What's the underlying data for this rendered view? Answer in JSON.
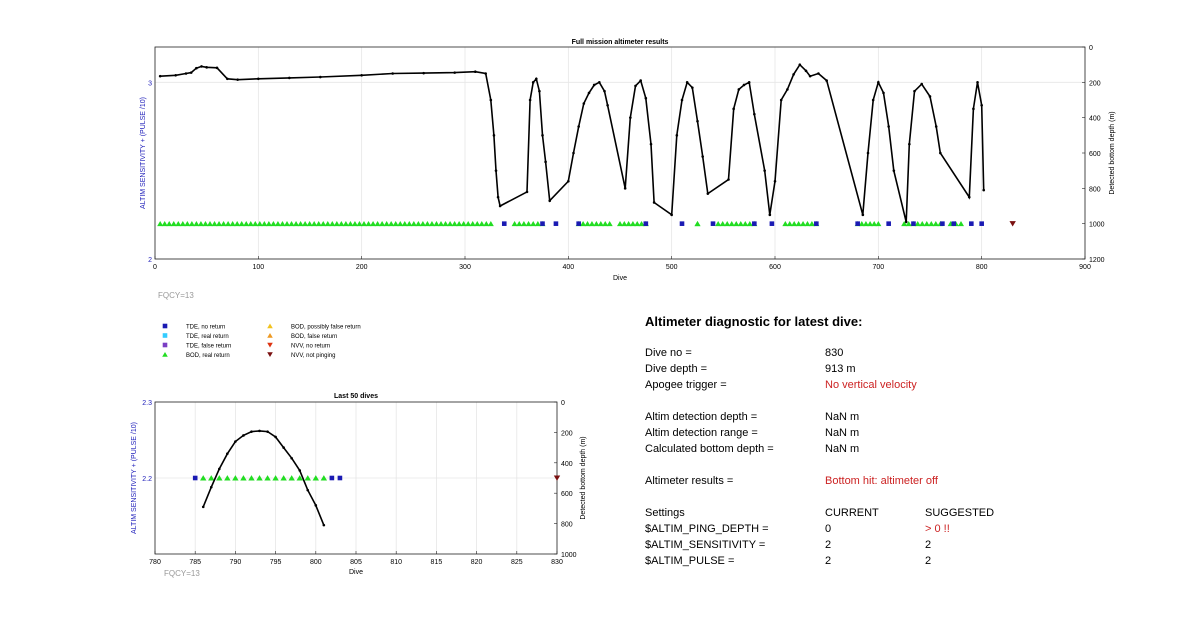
{
  "charts": {
    "main": {
      "title": "Full mission altimeter results",
      "xlabel": "Dive",
      "ylabel_left": "ALTIM SENSITIVITY + (PULSE /10)",
      "ylabel_right": "Detected bottom depth (m)",
      "x_ticks": [
        "0",
        "100",
        "200",
        "300",
        "400",
        "500",
        "600",
        "700",
        "800",
        "900"
      ],
      "y_left_ticks": [
        "2",
        "3"
      ],
      "y_right_ticks": [
        "0",
        "200",
        "400",
        "600",
        "800",
        "1000",
        "1200"
      ],
      "fqcy": "FQCY=13"
    },
    "last": {
      "title": "Last 50 dives",
      "xlabel": "Dive",
      "ylabel_left": "ALTIM SENSITIVITY + (PULSE /10)",
      "ylabel_right": "Detected bottom depth (m)",
      "x_ticks": [
        "780",
        "785",
        "790",
        "795",
        "800",
        "805",
        "810",
        "815",
        "820",
        "825",
        "830"
      ],
      "y_left_ticks": [
        "2.2",
        "2.3"
      ],
      "y_right_ticks": [
        "0",
        "200",
        "400",
        "600",
        "800",
        "1000"
      ],
      "fqcy": "FQCY=13"
    }
  },
  "legend": [
    {
      "label": "TDE, no return",
      "symbol": "square",
      "color": "#1a1ab3"
    },
    {
      "label": "TDE, real return",
      "symbol": "square",
      "color": "#33ccff"
    },
    {
      "label": "TDE, false return",
      "symbol": "square",
      "color": "#7b3fc4"
    },
    {
      "label": "BOD, real return",
      "symbol": "triangle-up",
      "color": "#22dd22"
    },
    {
      "label": "BOD, possibly false return",
      "symbol": "triangle-up",
      "color": "#f2c21f"
    },
    {
      "label": "BOD, false return",
      "symbol": "triangle-up",
      "color": "#ee9922"
    },
    {
      "label": "NVV, no return",
      "symbol": "triangle-down",
      "color": "#dd3311"
    },
    {
      "label": "NVV, not pinging",
      "symbol": "triangle-down",
      "color": "#7a1010"
    }
  ],
  "diagnostic": {
    "title": "Altimeter diagnostic for latest dive:",
    "rows1": [
      {
        "label": "Dive no =",
        "value": "830",
        "red": false
      },
      {
        "label": "Dive depth =",
        "value": "913 m",
        "red": false
      },
      {
        "label": "Apogee trigger =",
        "value": "No vertical velocity",
        "red": true
      }
    ],
    "rows2": [
      {
        "label": "Altim detection depth =",
        "value": "NaN m"
      },
      {
        "label": "Altim detection range =",
        "value": "NaN m"
      },
      {
        "label": "Calculated bottom depth =",
        "value": "NaN m"
      }
    ],
    "results_label": "Altimeter results =",
    "results_value": "Bottom hit: altimeter off",
    "settings_header": {
      "label": "Settings",
      "current": "CURRENT",
      "suggested": "SUGGESTED"
    },
    "settings": [
      {
        "name": "$ALTIM_PING_DEPTH =",
        "current": "0",
        "suggested": "> 0 !!",
        "suggested_red": true
      },
      {
        "name": "$ALTIM_SENSITIVITY =",
        "current": "2",
        "suggested": "2",
        "suggested_red": false
      },
      {
        "name": "$ALTIM_PULSE =",
        "current": "2",
        "suggested": "2",
        "suggested_red": false
      }
    ]
  },
  "chart_data": [
    {
      "type": "line",
      "title": "Full mission altimeter results",
      "xlabel": "Dive",
      "ylabel": "ALTIM SENSITIVITY + (PULSE /10)",
      "y2label": "Detected bottom depth (m)",
      "xlim": [
        0,
        900
      ],
      "ylim": [
        2,
        3.2
      ],
      "y2lim": [
        1200,
        0
      ],
      "series": [
        {
          "name": "Detected bottom depth",
          "axis": "right",
          "x": [
            5,
            20,
            30,
            35,
            40,
            45,
            50,
            60,
            70,
            80,
            100,
            130,
            160,
            200,
            230,
            260,
            290,
            310,
            320,
            325,
            328,
            330,
            332,
            334,
            360,
            363,
            366,
            369,
            372,
            375,
            378,
            382,
            400,
            405,
            410,
            415,
            420,
            425,
            430,
            435,
            438,
            455,
            460,
            465,
            470,
            475,
            480,
            483,
            500,
            505,
            510,
            515,
            520,
            525,
            530,
            535,
            555,
            560,
            565,
            570,
            575,
            580,
            590,
            595,
            600,
            606,
            612,
            618,
            624,
            630,
            634,
            642,
            650,
            685,
            690,
            695,
            700,
            705,
            710,
            715,
            727,
            730,
            735,
            742,
            750,
            756,
            760,
            788,
            792,
            796,
            800,
            802
          ],
          "y": [
            165,
            160,
            150,
            145,
            120,
            110,
            115,
            118,
            180,
            185,
            180,
            175,
            170,
            160,
            150,
            148,
            145,
            140,
            150,
            300,
            500,
            700,
            850,
            900,
            820,
            300,
            200,
            180,
            250,
            500,
            650,
            870,
            760,
            600,
            450,
            320,
            260,
            215,
            200,
            250,
            330,
            800,
            400,
            220,
            190,
            290,
            550,
            880,
            950,
            500,
            300,
            200,
            230,
            420,
            620,
            830,
            750,
            350,
            240,
            215,
            200,
            380,
            700,
            950,
            760,
            300,
            240,
            155,
            100,
            135,
            165,
            150,
            190,
            950,
            600,
            300,
            200,
            260,
            450,
            700,
            990,
            550,
            250,
            210,
            280,
            450,
            600,
            850,
            350,
            200,
            330,
            810
          ]
        },
        {
          "name": "BOD, real return",
          "axis": "left",
          "x_start": [
            5,
            348,
            410,
            450,
            525,
            545,
            610,
            680,
            725,
            770
          ],
          "x_end": [
            325,
            375,
            440,
            475,
            525,
            580,
            640,
            700,
            760,
            780
          ],
          "y": 2.2
        },
        {
          "name": "TDE, no return",
          "axis": "left",
          "x": [
            338,
            375,
            388,
            410,
            475,
            510,
            540,
            580,
            597,
            640,
            680,
            710,
            734,
            762,
            773,
            790,
            800
          ],
          "y": 2.2
        },
        {
          "name": "NVV, not pinging",
          "axis": "left",
          "x": [
            830
          ],
          "y": 2.2
        }
      ]
    },
    {
      "type": "line",
      "title": "Last 50 dives",
      "xlabel": "Dive",
      "ylabel": "ALTIM SENSITIVITY + (PULSE /10)",
      "y2label": "Detected bottom depth (m)",
      "xlim": [
        780,
        830
      ],
      "ylim": [
        2.1,
        2.3
      ],
      "y2lim": [
        1000,
        0
      ],
      "series": [
        {
          "name": "Detected bottom depth",
          "axis": "right",
          "x": [
            786,
            787,
            788,
            789,
            790,
            791,
            792,
            793,
            794,
            795,
            796,
            797,
            798,
            799,
            800,
            801
          ],
          "y": [
            690,
            560,
            440,
            340,
            260,
            220,
            195,
            190,
            195,
            230,
            300,
            370,
            450,
            580,
            680,
            810
          ]
        },
        {
          "name": "BOD, real return",
          "axis": "left",
          "x": [
            786,
            787,
            788,
            789,
            790,
            791,
            792,
            793,
            794,
            795,
            796,
            797,
            798,
            799,
            800,
            801
          ],
          "y": 2.2
        },
        {
          "name": "TDE, no return",
          "axis": "left",
          "x": [
            785,
            802,
            803
          ],
          "y": 2.2
        },
        {
          "name": "NVV, not pinging",
          "axis": "left",
          "x": [
            830
          ],
          "y": 2.2
        }
      ]
    }
  ]
}
